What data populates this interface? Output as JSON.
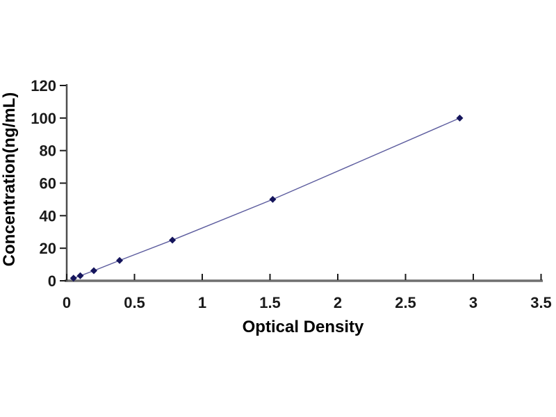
{
  "page": {
    "background": "#ffffff",
    "description": "ELISA standard curve plot on white background"
  },
  "chart_data": {
    "type": "scatter",
    "subtype": "standard-curve-connected-line",
    "title": "",
    "xlabel": "Optical Density",
    "ylabel": "Concentration(ng/mL)",
    "xlim": [
      0,
      3.5
    ],
    "ylim": [
      0,
      120
    ],
    "xticks": [
      0,
      0.5,
      1,
      1.5,
      2,
      2.5,
      3,
      3.5
    ],
    "xtick_labels": [
      "0",
      "0.5",
      "1",
      "1.5",
      "2",
      "2.5",
      "3",
      "3.5"
    ],
    "yticks": [
      0,
      20,
      40,
      60,
      80,
      100,
      120
    ],
    "ytick_labels": [
      "0",
      "20",
      "40",
      "60",
      "80",
      "100",
      "120"
    ],
    "points": [
      {
        "x": 0.05,
        "y": 1.6
      },
      {
        "x": 0.1,
        "y": 3.1
      },
      {
        "x": 0.2,
        "y": 6.2
      },
      {
        "x": 0.39,
        "y": 12.5
      },
      {
        "x": 0.78,
        "y": 25
      },
      {
        "x": 1.52,
        "y": 50
      },
      {
        "x": 2.9,
        "y": 100
      }
    ],
    "line_connected": true,
    "marker": "diamond",
    "grid": false,
    "legend": null,
    "colors": {
      "marker": "#15155c",
      "line": "#5c5c9e",
      "x_axis_line": "#6f6f6f",
      "y_axis_line": "#4d4d4d",
      "tick_mark": "#1a1a1a",
      "tick_text": "#1a1a1a",
      "axis_title_text": "#000000",
      "background": "#ffffff"
    }
  }
}
